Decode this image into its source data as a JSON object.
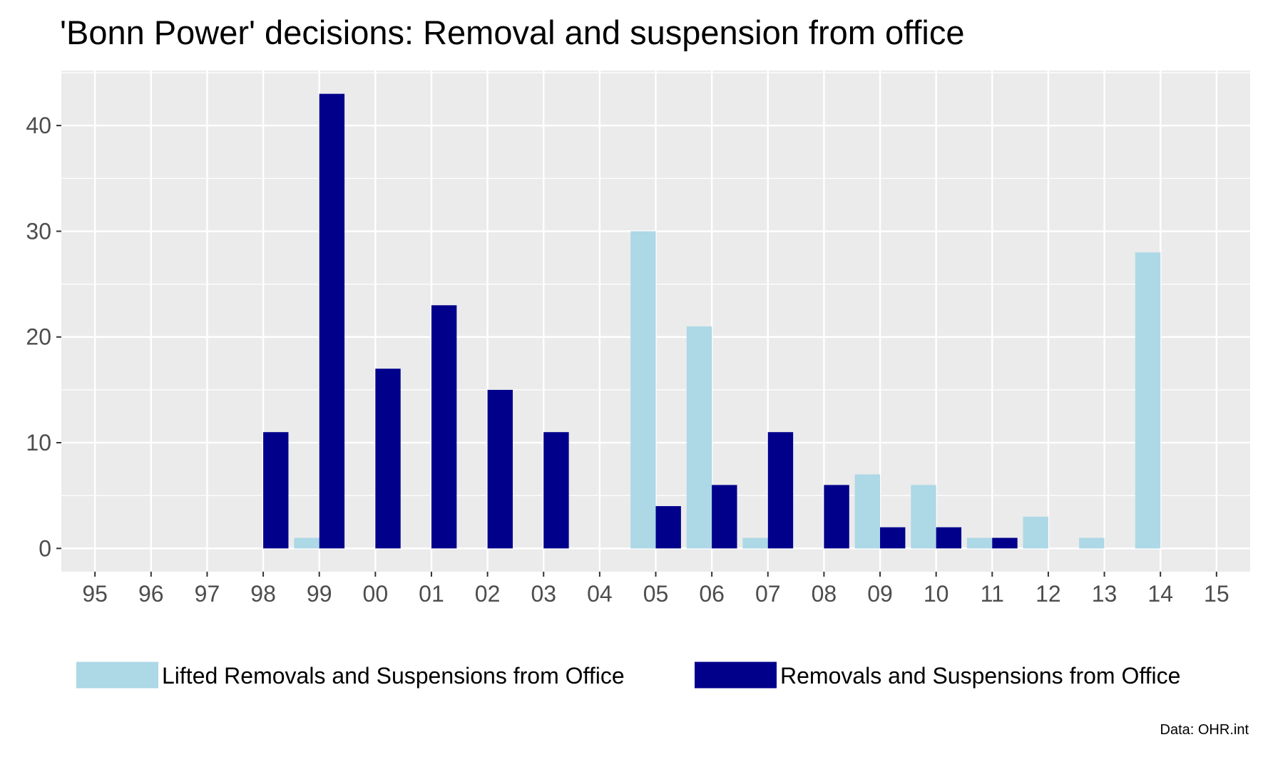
{
  "chart_data": {
    "type": "bar",
    "title": "'Bonn Power' decisions: Removal and suspension from office",
    "xlabel": "",
    "ylabel": "",
    "categories": [
      "95",
      "96",
      "97",
      "98",
      "99",
      "00",
      "01",
      "02",
      "03",
      "04",
      "05",
      "06",
      "07",
      "08",
      "09",
      "10",
      "11",
      "12",
      "13",
      "14",
      "15"
    ],
    "series": [
      {
        "name": "Lifted Removals and Suspensions from Office",
        "color": "#add8e6",
        "values": [
          0,
          0,
          0,
          0,
          1,
          0,
          0,
          0,
          0,
          0,
          30,
          21,
          1,
          0,
          7,
          6,
          1,
          3,
          1,
          28,
          0
        ]
      },
      {
        "name": "Removals and Suspensions from Office",
        "color": "#00008b",
        "values": [
          0,
          0,
          0,
          11,
          43,
          17,
          23,
          15,
          11,
          0,
          4,
          6,
          11,
          6,
          2,
          2,
          1,
          0,
          0,
          0,
          0
        ]
      }
    ],
    "ylim": [
      -2.2,
      45.2
    ],
    "yticks": [
      0,
      10,
      20,
      30,
      40
    ],
    "grid": true,
    "legend_position": "bottom",
    "caption": "Data: OHR.int"
  },
  "colors": {
    "panel_background": "#ebebeb",
    "grid_line": "#ffffff",
    "tick_text": "#4d4d4d"
  }
}
